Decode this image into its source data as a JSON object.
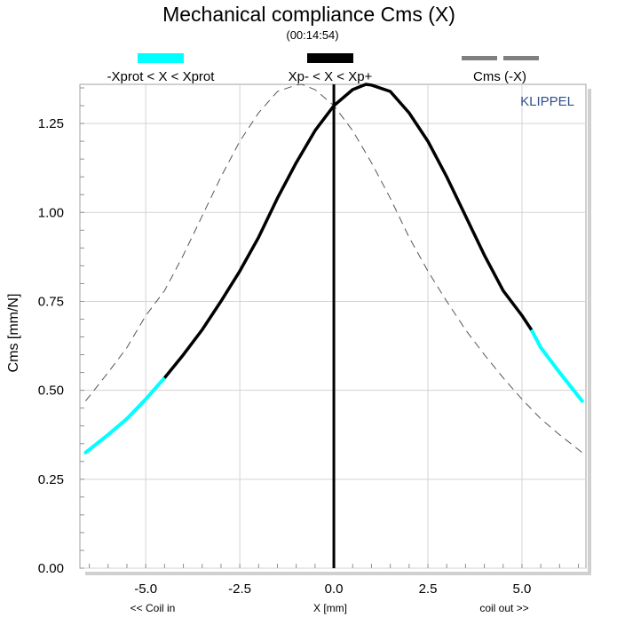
{
  "chart_data": {
    "type": "line",
    "title": "Mechanical compliance Cms (X)",
    "subtitle": "(00:14:54)",
    "brand": "KLIPPEL",
    "xlabel": "X [mm]",
    "xlabel_left": "<< Coil in",
    "xlabel_right": "coil out >>",
    "ylabel": "Cms [mm/N]",
    "xlim": [
      -6.75,
      6.7
    ],
    "ylim": [
      0,
      1.36
    ],
    "xticks": [
      -5.0,
      -2.5,
      0.0,
      2.5,
      5.0
    ],
    "xtick_labels": [
      "-5.0",
      "-2.5",
      "0.0",
      "2.5",
      "5.0"
    ],
    "yticks": [
      0,
      0.25,
      0.5,
      0.75,
      1.0,
      1.25
    ],
    "ytick_labels": [
      "0.00",
      "0.25",
      "0.50",
      "0.75",
      "1.00",
      "1.25"
    ],
    "grid": true,
    "legend_position": "top",
    "vertical_marker_x": 0.0,
    "series": [
      {
        "name": "-Xprot < X < Xprot",
        "color": "#00ffff",
        "style": "solid-thick",
        "x": [
          -6.6,
          -6.0,
          -5.5,
          -5.0,
          -4.5,
          5.25,
          5.5,
          6.0,
          6.6
        ],
        "y": [
          0.325,
          0.375,
          0.42,
          0.475,
          0.535,
          0.67,
          0.62,
          0.55,
          0.47
        ]
      },
      {
        "name": "Xp- < X < Xp+",
        "color": "#000000",
        "style": "solid-thick",
        "x": [
          -4.5,
          -4.0,
          -3.5,
          -3.0,
          -2.5,
          -2.0,
          -1.5,
          -1.0,
          -0.5,
          0.0,
          0.5,
          0.85,
          1.0,
          1.5,
          2.0,
          2.5,
          3.0,
          3.5,
          4.0,
          4.5,
          5.0,
          5.25
        ],
        "y": [
          0.535,
          0.6,
          0.67,
          0.75,
          0.835,
          0.93,
          1.04,
          1.14,
          1.23,
          1.3,
          1.345,
          1.36,
          1.358,
          1.34,
          1.28,
          1.2,
          1.1,
          0.99,
          0.88,
          0.78,
          0.71,
          0.67
        ]
      },
      {
        "name": "Cms (-X)",
        "color": "#555555",
        "style": "dashed-thin",
        "x": [
          -6.6,
          -6.0,
          -5.5,
          -5.0,
          -4.5,
          -4.0,
          -3.5,
          -3.0,
          -2.5,
          -2.0,
          -1.5,
          -1.0,
          -0.85,
          -0.5,
          0.0,
          0.5,
          1.0,
          1.5,
          2.0,
          2.5,
          3.0,
          3.5,
          4.0,
          4.5,
          5.0,
          5.5,
          6.0,
          6.6
        ],
        "y": [
          0.47,
          0.55,
          0.62,
          0.71,
          0.78,
          0.88,
          0.99,
          1.1,
          1.2,
          1.28,
          1.34,
          1.358,
          1.36,
          1.345,
          1.3,
          1.23,
          1.14,
          1.04,
          0.93,
          0.835,
          0.75,
          0.67,
          0.6,
          0.535,
          0.475,
          0.42,
          0.375,
          0.325
        ]
      }
    ]
  }
}
